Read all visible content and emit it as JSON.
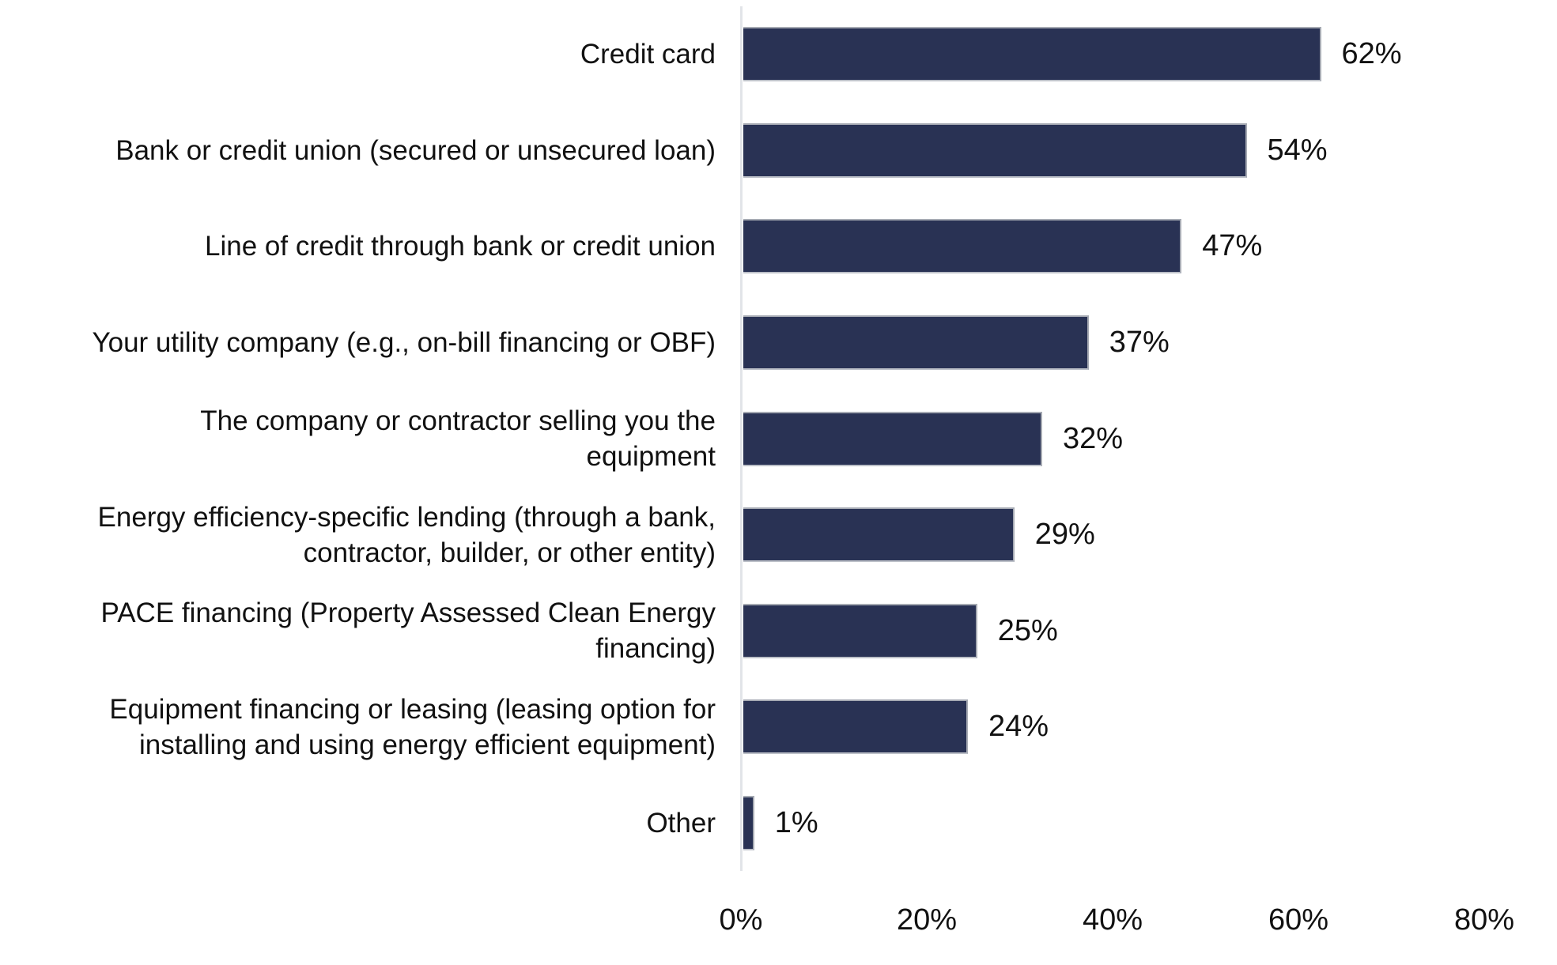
{
  "chart_data": {
    "type": "bar",
    "orientation": "horizontal",
    "title": "",
    "xlabel": "",
    "ylabel": "",
    "grid": false,
    "legend": false,
    "categories": [
      "Credit card",
      "Bank or credit union (secured or unsecured loan)",
      "Line of credit through bank or credit union",
      "Your utility company (e.g., on-bill financing or OBF)",
      "The company or contractor selling you the\nequipment",
      "Energy efficiency-specific lending (through a bank,\ncontractor, builder, or other entity)",
      "PACE financing (Property Assessed Clean Energy\nfinancing)",
      "Equipment financing or leasing (leasing option for\ninstalling and using energy efficient equipment)",
      "Other"
    ],
    "values": [
      62,
      54,
      47,
      37,
      32,
      29,
      25,
      24,
      1
    ],
    "value_labels": [
      "62%",
      "54%",
      "47%",
      "37%",
      "32%",
      "29%",
      "25%",
      "24%",
      "1%"
    ],
    "x_ticks": [
      {
        "label": "0%",
        "value": 0
      },
      {
        "label": "20%",
        "value": 20
      },
      {
        "label": "40%",
        "value": 40
      },
      {
        "label": "60%",
        "value": 60
      },
      {
        "label": "80%",
        "value": 80
      }
    ],
    "xlim": [
      0,
      88
    ],
    "colors": {
      "bar_fill": "#293254",
      "bar_outline": "#a6aab3",
      "axis_line": "#e2e4e8",
      "text": "#111111"
    }
  }
}
